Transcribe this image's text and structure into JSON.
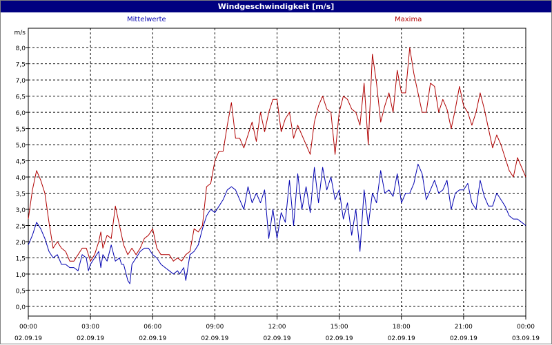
{
  "window": {
    "title": "Windgeschwindigkeit [m/s]"
  },
  "chart_data": {
    "type": "line",
    "title": "Windgeschwindigkeit [m/s]",
    "ylabel": "m/s",
    "ylim": [
      -0.3,
      8.6
    ],
    "xlim": [
      0,
      24
    ],
    "grid": true,
    "y_ticks": [
      "0,0",
      "0,5",
      "1,0",
      "1,5",
      "2,0",
      "2,5",
      "3,0",
      "3,5",
      "4,0",
      "4,5",
      "5,0",
      "5,5",
      "6,0",
      "6,5",
      "7,0",
      "7,5",
      "8,0"
    ],
    "x_ticks": [
      {
        "time": "00:00",
        "date": "02.09.19"
      },
      {
        "time": "03:00",
        "date": "02.09.19"
      },
      {
        "time": "06:00",
        "date": "02.09.19"
      },
      {
        "time": "09:00",
        "date": "02.09.19"
      },
      {
        "time": "12:00",
        "date": "02.09.19"
      },
      {
        "time": "15:00",
        "date": "02.09.19"
      },
      {
        "time": "18:00",
        "date": "02.09.19"
      },
      {
        "time": "21:00",
        "date": "02.09.19"
      },
      {
        "time": "00:00",
        "date": "03.09.19"
      }
    ],
    "series": [
      {
        "name": "Mittelwerte",
        "color": "#0000b0",
        "points": [
          [
            0.0,
            1.9
          ],
          [
            0.2,
            2.2
          ],
          [
            0.4,
            2.6
          ],
          [
            0.6,
            2.4
          ],
          [
            0.8,
            2.1
          ],
          [
            1.0,
            1.7
          ],
          [
            1.2,
            1.5
          ],
          [
            1.4,
            1.6
          ],
          [
            1.6,
            1.3
          ],
          [
            1.8,
            1.3
          ],
          [
            2.0,
            1.2
          ],
          [
            2.2,
            1.2
          ],
          [
            2.4,
            1.1
          ],
          [
            2.6,
            1.6
          ],
          [
            2.8,
            1.5
          ],
          [
            2.9,
            1.1
          ],
          [
            3.0,
            1.3
          ],
          [
            3.2,
            1.5
          ],
          [
            3.4,
            1.7
          ],
          [
            3.5,
            1.2
          ],
          [
            3.6,
            1.6
          ],
          [
            3.8,
            1.4
          ],
          [
            4.0,
            1.9
          ],
          [
            4.2,
            1.4
          ],
          [
            4.4,
            1.5
          ],
          [
            4.5,
            1.3
          ],
          [
            4.6,
            1.3
          ],
          [
            4.8,
            0.8
          ],
          [
            4.9,
            0.7
          ],
          [
            5.0,
            1.3
          ],
          [
            5.2,
            1.5
          ],
          [
            5.4,
            1.7
          ],
          [
            5.6,
            1.8
          ],
          [
            5.8,
            1.8
          ],
          [
            6.0,
            1.6
          ],
          [
            6.2,
            1.5
          ],
          [
            6.4,
            1.3
          ],
          [
            6.6,
            1.2
          ],
          [
            6.8,
            1.1
          ],
          [
            7.0,
            1.0
          ],
          [
            7.2,
            1.1
          ],
          [
            7.3,
            1.0
          ],
          [
            7.5,
            1.2
          ],
          [
            7.6,
            0.8
          ],
          [
            7.8,
            1.6
          ],
          [
            8.0,
            1.7
          ],
          [
            8.2,
            1.9
          ],
          [
            8.4,
            2.4
          ],
          [
            8.6,
            2.8
          ],
          [
            8.8,
            3.0
          ],
          [
            9.0,
            2.9
          ],
          [
            9.2,
            3.1
          ],
          [
            9.4,
            3.3
          ],
          [
            9.6,
            3.6
          ],
          [
            9.8,
            3.7
          ],
          [
            10.0,
            3.6
          ],
          [
            10.2,
            3.3
          ],
          [
            10.4,
            3.0
          ],
          [
            10.6,
            3.7
          ],
          [
            10.8,
            3.2
          ],
          [
            11.0,
            3.5
          ],
          [
            11.2,
            3.2
          ],
          [
            11.4,
            3.6
          ],
          [
            11.6,
            2.1
          ],
          [
            11.8,
            3.0
          ],
          [
            12.0,
            2.1
          ],
          [
            12.2,
            2.9
          ],
          [
            12.4,
            2.6
          ],
          [
            12.6,
            3.9
          ],
          [
            12.8,
            2.5
          ],
          [
            13.0,
            4.1
          ],
          [
            13.2,
            3.0
          ],
          [
            13.4,
            3.7
          ],
          [
            13.6,
            2.9
          ],
          [
            13.8,
            4.3
          ],
          [
            14.0,
            3.2
          ],
          [
            14.2,
            4.3
          ],
          [
            14.4,
            3.6
          ],
          [
            14.6,
            4.0
          ],
          [
            14.8,
            3.3
          ],
          [
            15.0,
            3.6
          ],
          [
            15.2,
            2.7
          ],
          [
            15.4,
            3.2
          ],
          [
            15.6,
            2.2
          ],
          [
            15.8,
            3.0
          ],
          [
            16.0,
            1.7
          ],
          [
            16.2,
            3.6
          ],
          [
            16.4,
            2.5
          ],
          [
            16.6,
            3.5
          ],
          [
            16.8,
            3.2
          ],
          [
            17.0,
            4.2
          ],
          [
            17.2,
            3.5
          ],
          [
            17.4,
            3.6
          ],
          [
            17.6,
            3.4
          ],
          [
            17.8,
            4.1
          ],
          [
            18.0,
            3.2
          ],
          [
            18.2,
            3.5
          ],
          [
            18.4,
            3.5
          ],
          [
            18.6,
            3.8
          ],
          [
            18.8,
            4.4
          ],
          [
            19.0,
            4.1
          ],
          [
            19.2,
            3.3
          ],
          [
            19.4,
            3.6
          ],
          [
            19.6,
            3.9
          ],
          [
            19.8,
            3.5
          ],
          [
            20.0,
            3.6
          ],
          [
            20.2,
            3.9
          ],
          [
            20.4,
            3.0
          ],
          [
            20.6,
            3.5
          ],
          [
            20.8,
            3.6
          ],
          [
            21.0,
            3.6
          ],
          [
            21.2,
            3.8
          ],
          [
            21.4,
            3.2
          ],
          [
            21.6,
            3.0
          ],
          [
            21.8,
            3.9
          ],
          [
            22.0,
            3.4
          ],
          [
            22.2,
            3.1
          ],
          [
            22.4,
            3.1
          ],
          [
            22.6,
            3.5
          ],
          [
            22.8,
            3.3
          ],
          [
            23.0,
            3.1
          ],
          [
            23.2,
            2.8
          ],
          [
            23.4,
            2.7
          ],
          [
            23.6,
            2.7
          ],
          [
            23.8,
            2.6
          ],
          [
            24.0,
            2.5
          ]
        ]
      },
      {
        "name": "Maxima",
        "color": "#b00000",
        "points": [
          [
            0.0,
            2.7
          ],
          [
            0.2,
            3.6
          ],
          [
            0.4,
            4.2
          ],
          [
            0.6,
            3.9
          ],
          [
            0.8,
            3.5
          ],
          [
            1.0,
            2.6
          ],
          [
            1.2,
            1.8
          ],
          [
            1.4,
            2.0
          ],
          [
            1.6,
            1.8
          ],
          [
            1.8,
            1.7
          ],
          [
            2.0,
            1.4
          ],
          [
            2.2,
            1.4
          ],
          [
            2.4,
            1.6
          ],
          [
            2.6,
            1.8
          ],
          [
            2.8,
            1.8
          ],
          [
            3.0,
            1.4
          ],
          [
            3.2,
            1.6
          ],
          [
            3.4,
            2.0
          ],
          [
            3.5,
            2.3
          ],
          [
            3.6,
            1.8
          ],
          [
            3.8,
            2.2
          ],
          [
            4.0,
            2.1
          ],
          [
            4.2,
            3.1
          ],
          [
            4.4,
            2.5
          ],
          [
            4.6,
            1.9
          ],
          [
            4.8,
            1.6
          ],
          [
            5.0,
            1.8
          ],
          [
            5.2,
            1.6
          ],
          [
            5.4,
            1.8
          ],
          [
            5.6,
            2.1
          ],
          [
            5.8,
            2.2
          ],
          [
            6.0,
            2.4
          ],
          [
            6.2,
            1.8
          ],
          [
            6.4,
            1.6
          ],
          [
            6.6,
            1.6
          ],
          [
            6.8,
            1.6
          ],
          [
            7.0,
            1.4
          ],
          [
            7.2,
            1.5
          ],
          [
            7.4,
            1.4
          ],
          [
            7.6,
            1.6
          ],
          [
            7.8,
            1.7
          ],
          [
            8.0,
            2.4
          ],
          [
            8.2,
            2.3
          ],
          [
            8.4,
            2.5
          ],
          [
            8.6,
            3.7
          ],
          [
            8.8,
            3.8
          ],
          [
            9.0,
            4.5
          ],
          [
            9.2,
            4.8
          ],
          [
            9.4,
            4.8
          ],
          [
            9.6,
            5.6
          ],
          [
            9.8,
            6.3
          ],
          [
            10.0,
            5.2
          ],
          [
            10.2,
            5.2
          ],
          [
            10.4,
            4.9
          ],
          [
            10.6,
            5.3
          ],
          [
            10.8,
            5.7
          ],
          [
            11.0,
            5.1
          ],
          [
            11.2,
            6.0
          ],
          [
            11.4,
            5.4
          ],
          [
            11.6,
            6.0
          ],
          [
            11.8,
            6.4
          ],
          [
            12.0,
            6.4
          ],
          [
            12.2,
            5.4
          ],
          [
            12.4,
            5.8
          ],
          [
            12.6,
            6.0
          ],
          [
            12.8,
            5.2
          ],
          [
            13.0,
            5.6
          ],
          [
            13.2,
            5.3
          ],
          [
            13.4,
            5.0
          ],
          [
            13.6,
            4.7
          ],
          [
            13.8,
            5.7
          ],
          [
            14.0,
            6.2
          ],
          [
            14.2,
            6.5
          ],
          [
            14.4,
            6.1
          ],
          [
            14.6,
            6.0
          ],
          [
            14.8,
            4.7
          ],
          [
            15.0,
            6.0
          ],
          [
            15.2,
            6.5
          ],
          [
            15.4,
            6.4
          ],
          [
            15.6,
            6.1
          ],
          [
            15.8,
            6.0
          ],
          [
            16.0,
            5.6
          ],
          [
            16.2,
            6.9
          ],
          [
            16.4,
            5.0
          ],
          [
            16.6,
            7.8
          ],
          [
            16.8,
            6.9
          ],
          [
            17.0,
            5.7
          ],
          [
            17.2,
            6.2
          ],
          [
            17.4,
            6.6
          ],
          [
            17.6,
            6.0
          ],
          [
            17.8,
            7.3
          ],
          [
            18.0,
            6.6
          ],
          [
            18.2,
            6.6
          ],
          [
            18.4,
            8.0
          ],
          [
            18.6,
            7.2
          ],
          [
            18.8,
            6.6
          ],
          [
            19.0,
            6.0
          ],
          [
            19.2,
            6.0
          ],
          [
            19.4,
            6.9
          ],
          [
            19.6,
            6.8
          ],
          [
            19.8,
            6.0
          ],
          [
            20.0,
            6.4
          ],
          [
            20.2,
            6.1
          ],
          [
            20.4,
            5.5
          ],
          [
            20.6,
            6.1
          ],
          [
            20.8,
            6.8
          ],
          [
            21.0,
            6.2
          ],
          [
            21.2,
            6.0
          ],
          [
            21.4,
            5.6
          ],
          [
            21.6,
            6.0
          ],
          [
            21.8,
            6.6
          ],
          [
            22.0,
            6.1
          ],
          [
            22.2,
            5.5
          ],
          [
            22.4,
            4.9
          ],
          [
            22.6,
            5.3
          ],
          [
            22.8,
            5.0
          ],
          [
            23.0,
            4.6
          ],
          [
            23.2,
            4.2
          ],
          [
            23.4,
            4.0
          ],
          [
            23.6,
            4.6
          ],
          [
            23.8,
            4.3
          ],
          [
            24.0,
            4.0
          ]
        ]
      }
    ]
  }
}
